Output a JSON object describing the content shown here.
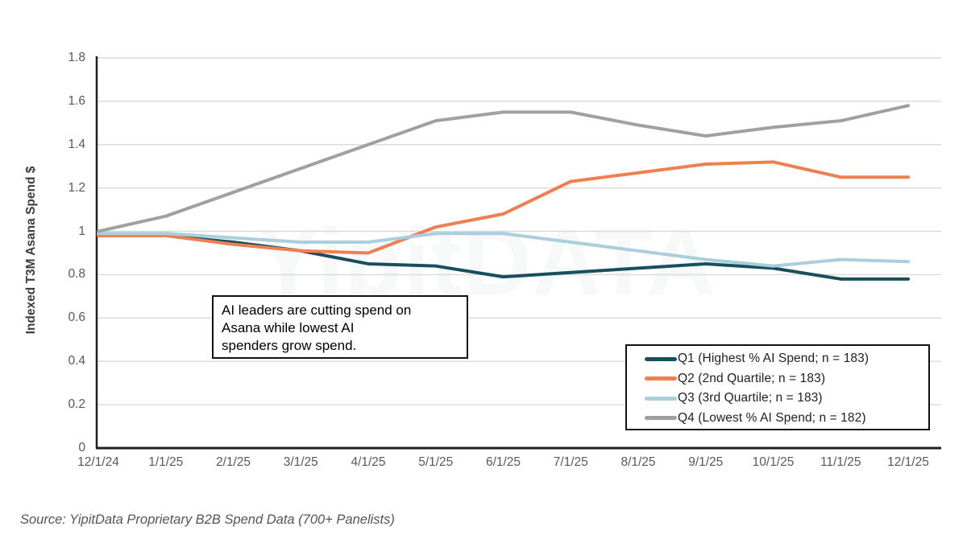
{
  "chart_data": {
    "type": "line",
    "title": "",
    "xlabel": "",
    "ylabel": "Indexed T3M Asana Spend $",
    "ylim": [
      0,
      1.8
    ],
    "ytick_step": 0.2,
    "grid": true,
    "legend_position": "inside-bottom-right",
    "categories": [
      "12/1/24",
      "1/1/25",
      "2/1/25",
      "3/1/25",
      "4/1/25",
      "5/1/25",
      "6/1/25",
      "7/1/25",
      "8/1/25",
      "9/1/25",
      "10/1/25",
      "11/1/25",
      "12/1/25"
    ],
    "series": [
      {
        "name": "Q1 (Highest % AI Spend; n = 183)",
        "color": "#17505c",
        "values": [
          0.98,
          0.98,
          0.95,
          0.91,
          0.85,
          0.84,
          0.79,
          0.81,
          0.83,
          0.85,
          0.83,
          0.78,
          0.78
        ]
      },
      {
        "name": "Q2 (2nd Quartile; n = 183)",
        "color": "#ef7e50",
        "values": [
          0.98,
          0.98,
          0.94,
          0.91,
          0.9,
          1.02,
          1.08,
          1.23,
          1.27,
          1.31,
          1.32,
          1.25,
          1.25
        ]
      },
      {
        "name": "Q3 (3rd Quartile; n = 183)",
        "color": "#a9cedc",
        "values": [
          0.99,
          0.99,
          0.97,
          0.95,
          0.95,
          0.99,
          0.99,
          0.95,
          0.91,
          0.87,
          0.84,
          0.87,
          0.86
        ]
      },
      {
        "name": "Q4 (Lowest % AI Spend; n = 182)",
        "color": "#a0a0a0",
        "values": [
          1.0,
          1.07,
          1.18,
          1.29,
          1.4,
          1.51,
          1.55,
          1.55,
          1.49,
          1.44,
          1.48,
          1.51,
          1.58
        ]
      }
    ]
  },
  "annotation": {
    "text": "AI leaders are cutting spend on\nAsana while lowest AI\nspenders grow spend."
  },
  "watermark": {
    "text": "YipitDATA"
  },
  "source": {
    "text": "Source: YipitData Proprietary B2B Spend Data (700+ Panelists)"
  },
  "colors": {
    "grid": "#d9d9d9",
    "axis_line": "#1f1f1f",
    "tick_label": "#595959",
    "axis_title": "#3d3d3d",
    "box_border": "#111111",
    "background": "#ffffff"
  }
}
